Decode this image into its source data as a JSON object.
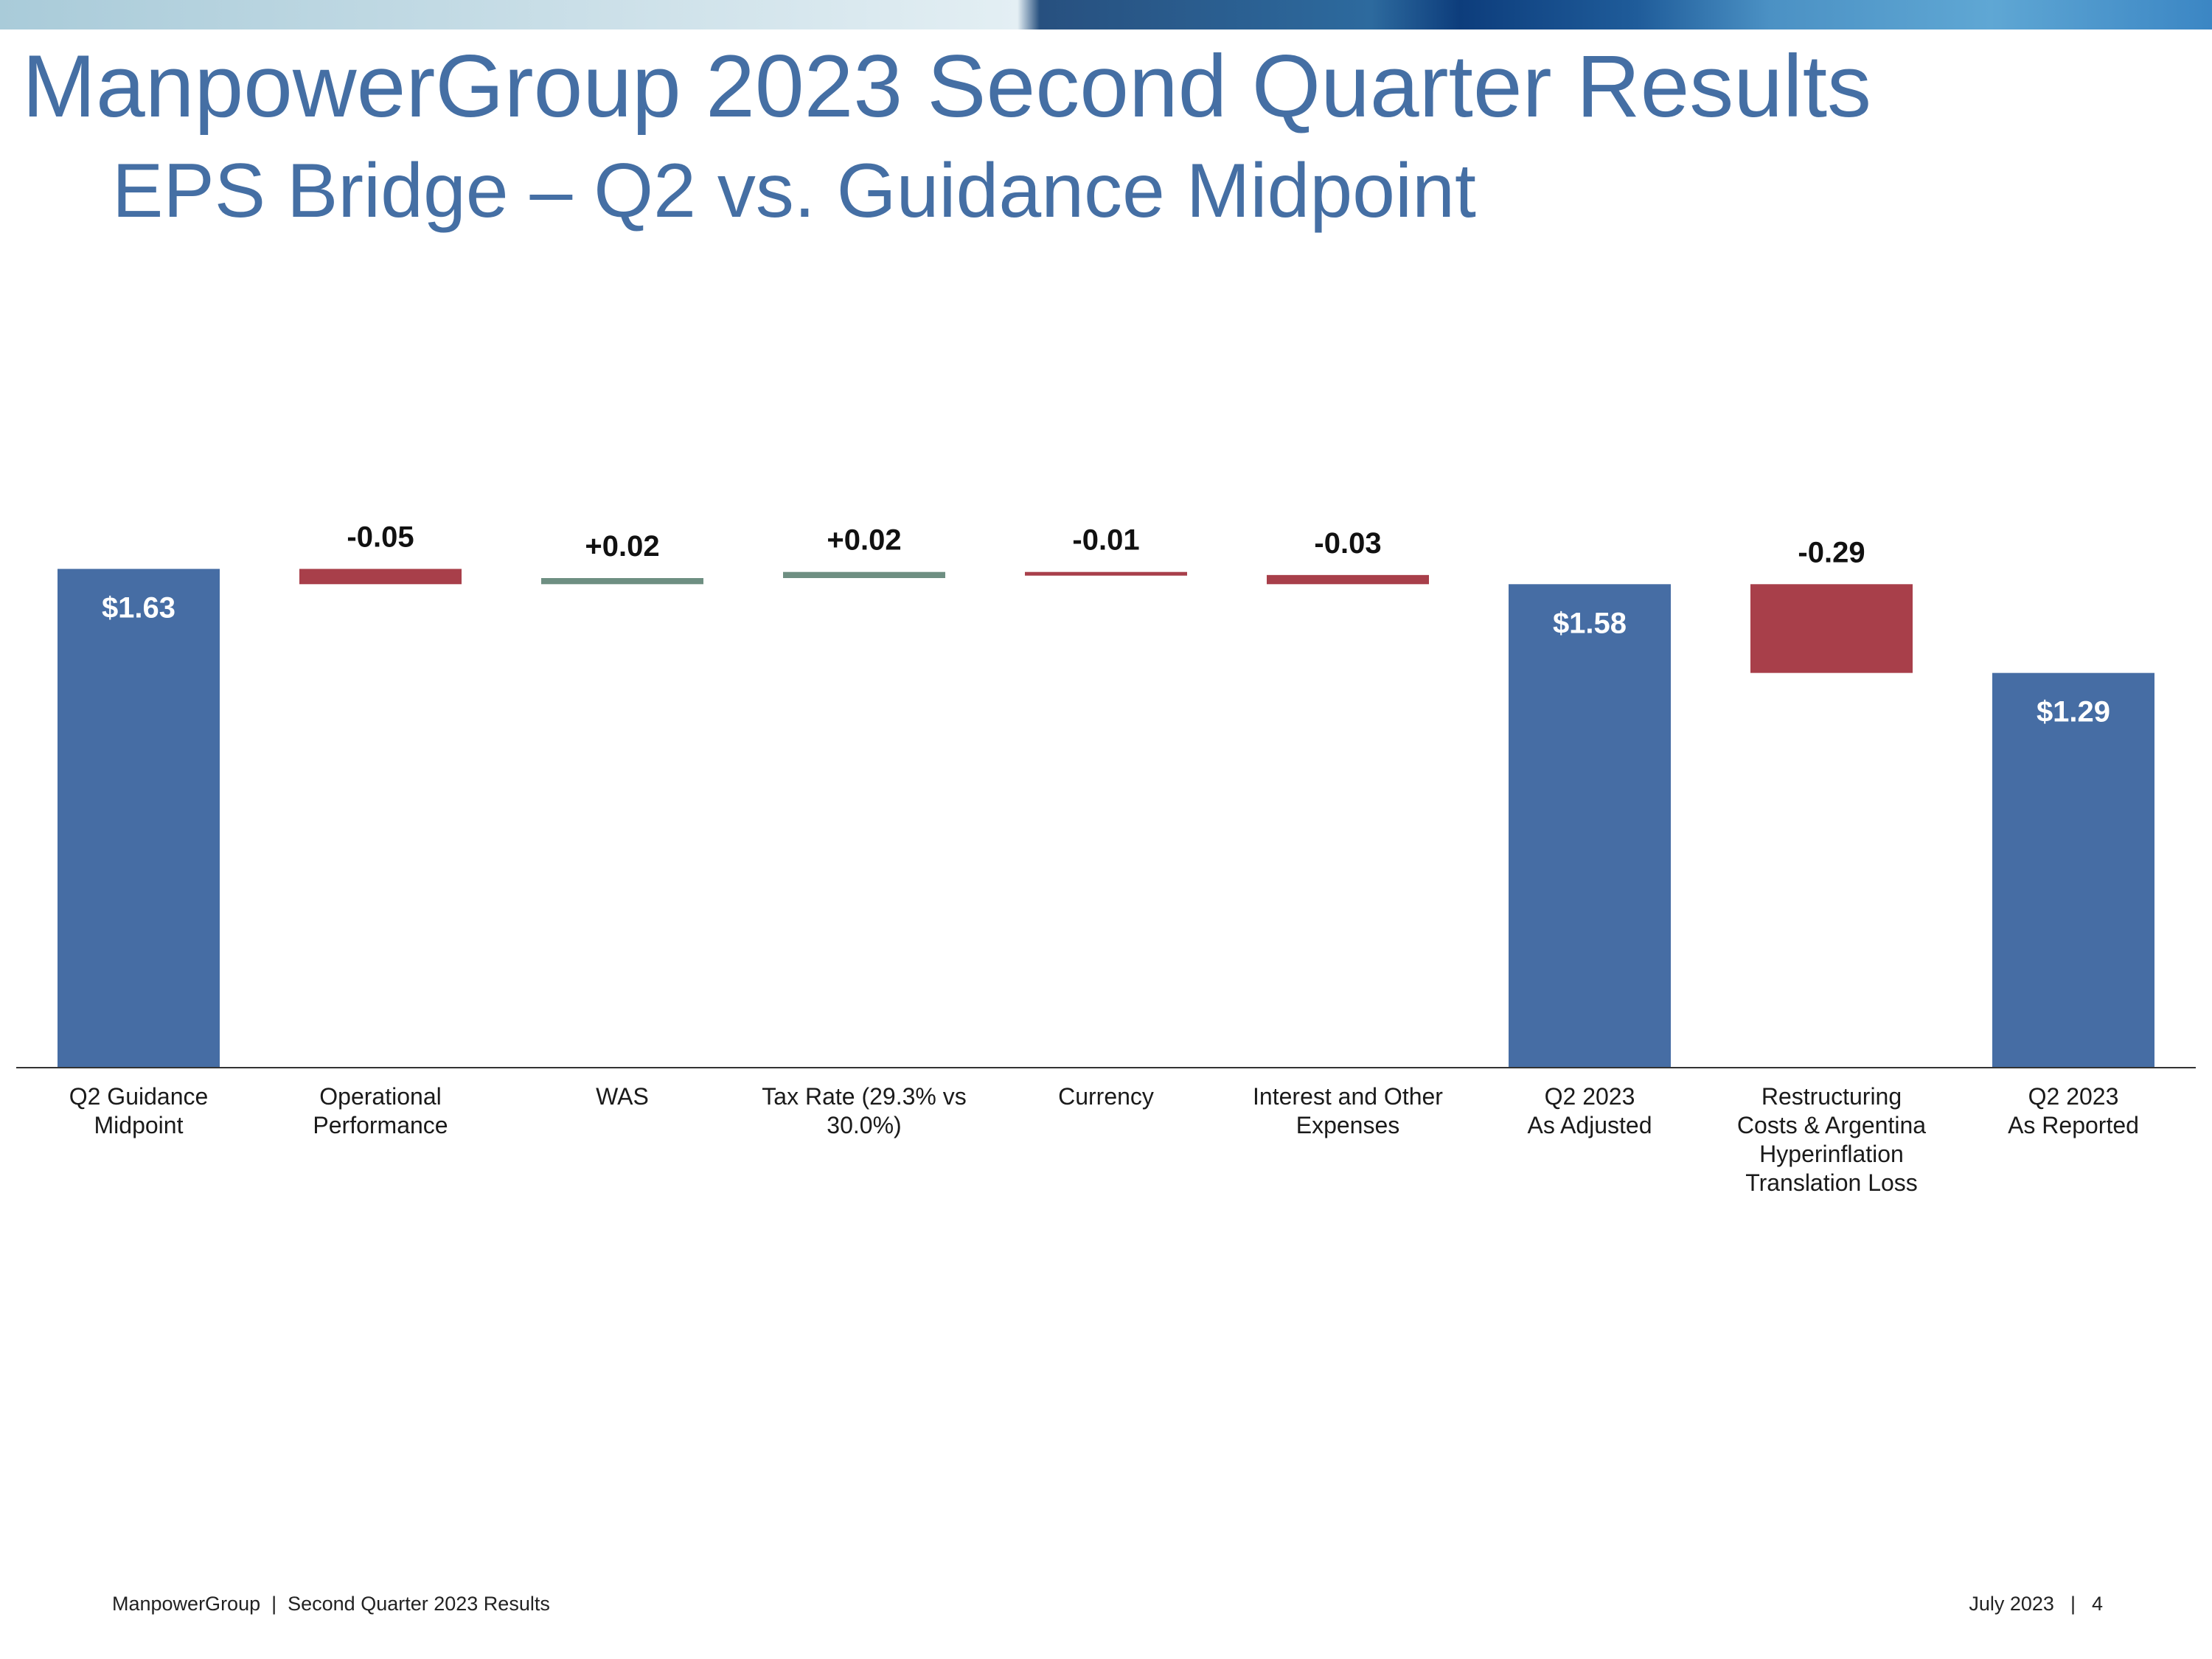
{
  "slide": {
    "title": "ManpowerGroup 2023 Second Quarter Results",
    "subtitle": "EPS Bridge – Q2 vs. Guidance Midpoint"
  },
  "footer": {
    "left": "ManpowerGroup  |  Second Quarter 2023 Results",
    "date": "July 2023",
    "separator": "|",
    "page": "4"
  },
  "colors": {
    "total": "#466da4",
    "negative": "#a83f4a",
    "positive": "#6e8f82",
    "title": "#456fa4"
  },
  "chart_data": {
    "type": "waterfall",
    "title": "",
    "xlabel": "",
    "ylabel": "",
    "grid": false,
    "legend": "none",
    "ylim": [
      0,
      1.7
    ],
    "categories": [
      [
        "Q2 Guidance",
        "Midpoint"
      ],
      [
        "Operational",
        "Performance"
      ],
      [
        "WAS"
      ],
      [
        "Tax Rate (29.3% vs",
        "30.0%)"
      ],
      [
        "Currency"
      ],
      [
        "Interest and Other",
        "Expenses"
      ],
      [
        "Q2 2023",
        "As Adjusted"
      ],
      [
        "Restructuring",
        "Costs & Argentina",
        "Hyperinflation",
        "Translation Loss"
      ],
      [
        "Q2 2023",
        "As Reported"
      ]
    ],
    "steps": [
      {
        "kind": "total",
        "value": 1.63,
        "label": "$1.63"
      },
      {
        "kind": "delta",
        "value": -0.05,
        "label": "-0.05"
      },
      {
        "kind": "delta",
        "value": 0.02,
        "label": "+0.02"
      },
      {
        "kind": "delta",
        "value": 0.02,
        "label": "+0.02"
      },
      {
        "kind": "delta",
        "value": -0.01,
        "label": "-0.01"
      },
      {
        "kind": "delta",
        "value": -0.03,
        "label": "-0.03"
      },
      {
        "kind": "total",
        "value": 1.58,
        "label": "$1.58"
      },
      {
        "kind": "delta",
        "value": -0.29,
        "label": "-0.29"
      },
      {
        "kind": "total",
        "value": 1.29,
        "label": "$1.29"
      }
    ]
  }
}
